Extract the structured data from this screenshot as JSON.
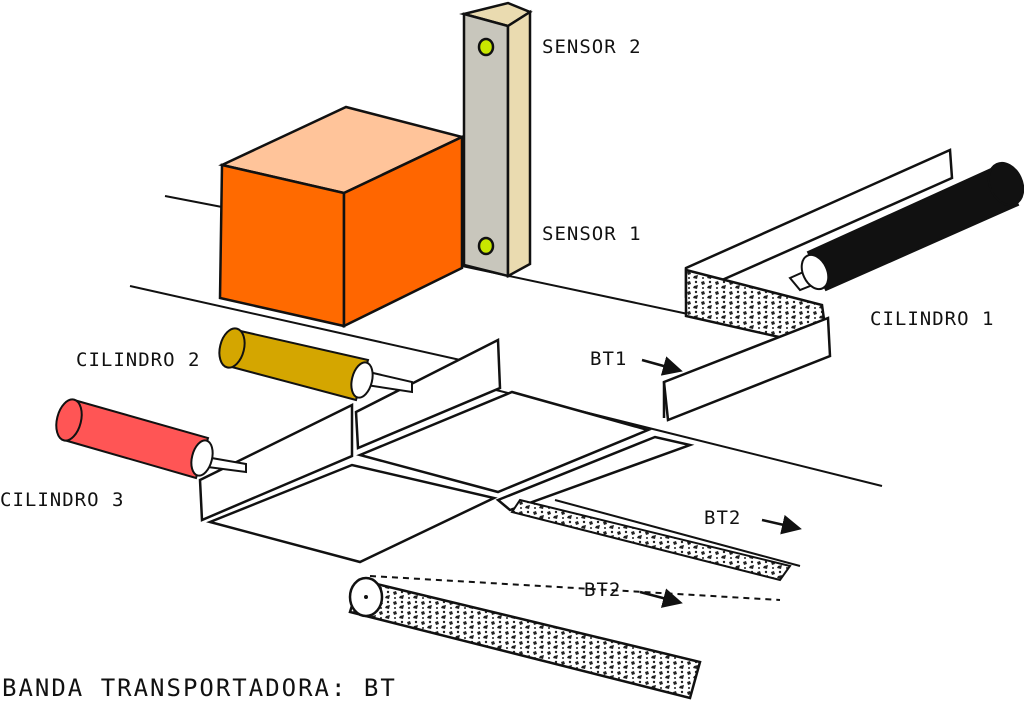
{
  "labels": {
    "sensor_2": "SENSOR 2",
    "sensor_1": "SENSOR 1",
    "cilindro_1": "CILINDRO 1",
    "cilindro_2": "CILINDRO 2",
    "cilindro_3": "CILINDRO 3",
    "bt1": "BT1",
    "bt2_upper": "BT2",
    "bt2_lower": "BT2",
    "footer": "BANDA TRANSPORTADORA: BT"
  },
  "colors": {
    "box_front": "#ff6a00",
    "box_top": "#ffc49a",
    "box_side": "#ff6600",
    "sensor_front": "#c8c6bc",
    "sensor_side": "#eadbb0",
    "sensor_led": "#c8e600",
    "cilindro_1": "#111111",
    "cilindro_2": "#d4a600",
    "cilindro_3": "#ff5555",
    "belt_texture": "#222222"
  }
}
